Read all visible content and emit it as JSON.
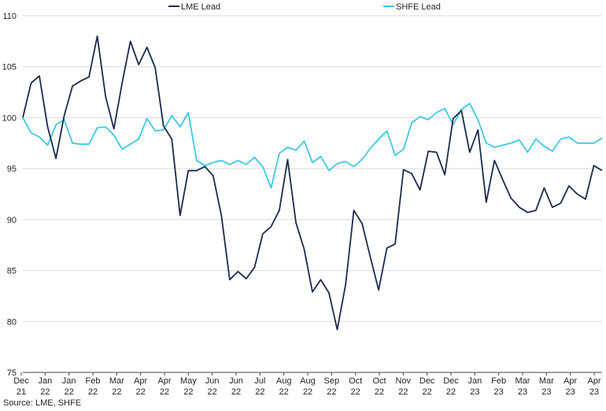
{
  "chart_data": {
    "type": "line",
    "title": "",
    "xlabel": "",
    "ylabel": "",
    "ylim": [
      75,
      110
    ],
    "yticks": [
      75,
      80,
      85,
      90,
      95,
      100,
      105,
      110
    ],
    "grid": "horizontal",
    "legend_position": "top",
    "x_tick_labels": [
      {
        "month": "Dec",
        "year": "21"
      },
      {
        "month": "Jan",
        "year": "22"
      },
      {
        "month": "Jan",
        "year": "22"
      },
      {
        "month": "Feb",
        "year": "22"
      },
      {
        "month": "Mar",
        "year": "22"
      },
      {
        "month": "Apr",
        "year": "22"
      },
      {
        "month": "Apr",
        "year": "22"
      },
      {
        "month": "May",
        "year": "22"
      },
      {
        "month": "Jun",
        "year": "22"
      },
      {
        "month": "Jun",
        "year": "22"
      },
      {
        "month": "Jul",
        "year": "22"
      },
      {
        "month": "Aug",
        "year": "22"
      },
      {
        "month": "Aug",
        "year": "22"
      },
      {
        "month": "Sep",
        "year": "22"
      },
      {
        "month": "Oct",
        "year": "22"
      },
      {
        "month": "Oct",
        "year": "22"
      },
      {
        "month": "Nov",
        "year": "22"
      },
      {
        "month": "Dec",
        "year": "22"
      },
      {
        "month": "Dec",
        "year": "22"
      },
      {
        "month": "Jan",
        "year": "23"
      },
      {
        "month": "Feb",
        "year": "23"
      },
      {
        "month": "Mar",
        "year": "23"
      },
      {
        "month": "Mar",
        "year": "23"
      },
      {
        "month": "Apr",
        "year": "23"
      },
      {
        "month": "Apr",
        "year": "23"
      }
    ],
    "series": [
      {
        "name": "LME Lead",
        "color": "#1b2a4e",
        "values": [
          100.0,
          103.4,
          104.1,
          99.1,
          96.0,
          100.2,
          103.1,
          103.6,
          104.0,
          108.0,
          102.1,
          98.9,
          103.4,
          107.5,
          105.2,
          106.9,
          104.9,
          99.2,
          97.9,
          90.4,
          94.8,
          94.8,
          95.2,
          94.3,
          90.4,
          84.1,
          84.9,
          84.2,
          85.3,
          88.6,
          89.3,
          90.9,
          95.9,
          89.7,
          87.1,
          82.9,
          84.1,
          82.8,
          79.2,
          83.6,
          90.9,
          89.6,
          86.3,
          83.1,
          87.2,
          87.6,
          94.9,
          94.5,
          92.9,
          96.7,
          96.6,
          94.4,
          99.9,
          100.7,
          96.6,
          98.8,
          91.7,
          95.8,
          93.9,
          92.1,
          91.2,
          90.7,
          90.9,
          93.1,
          91.2,
          91.6,
          93.3,
          92.5,
          92.0,
          95.3,
          94.8
        ]
      },
      {
        "name": "SHFE Lead",
        "color": "#3ec8e6",
        "values": [
          100.0,
          98.5,
          98.1,
          97.3,
          99.3,
          99.8,
          97.5,
          97.4,
          97.4,
          99.0,
          99.1,
          98.3,
          96.9,
          97.4,
          97.9,
          99.9,
          98.7,
          98.8,
          100.2,
          99.1,
          100.5,
          95.8,
          95.3,
          95.6,
          95.8,
          95.4,
          95.8,
          95.4,
          96.1,
          95.2,
          93.1,
          96.5,
          97.1,
          96.8,
          97.7,
          95.6,
          96.2,
          94.8,
          95.5,
          95.7,
          95.2,
          95.9,
          97.0,
          97.9,
          98.7,
          96.3,
          96.9,
          99.5,
          100.1,
          99.8,
          100.5,
          100.9,
          99.3,
          100.8,
          101.4,
          99.8,
          97.5,
          97.1,
          97.3,
          97.5,
          97.8,
          96.6,
          97.9,
          97.2,
          96.7,
          97.9,
          98.1,
          97.5,
          97.5,
          97.5,
          98.0
        ]
      }
    ],
    "source": "Source: LME, SHFE"
  }
}
